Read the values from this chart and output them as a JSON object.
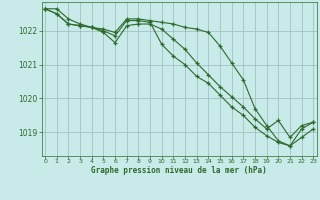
{
  "background_color": "#c8eae8",
  "grid_color": "#9ababa",
  "line_color": "#2d6a2d",
  "marker_color": "#2d6a2d",
  "xlabel": "Graphe pression niveau de la mer (hPa)",
  "xlabel_color": "#2d6a2d",
  "tick_color": "#2d6a2d",
  "ylim": [
    1018.3,
    1022.85
  ],
  "xlim": [
    -0.3,
    23.3
  ],
  "yticks": [
    1019,
    1020,
    1021,
    1022
  ],
  "xticks": [
    0,
    1,
    2,
    3,
    4,
    5,
    6,
    7,
    8,
    9,
    10,
    11,
    12,
    13,
    14,
    15,
    16,
    17,
    18,
    19,
    20,
    21,
    22,
    23
  ],
  "series": [
    [
      1022.65,
      1022.65,
      1022.35,
      1022.2,
      1022.1,
      1021.95,
      1021.65,
      1022.15,
      1022.2,
      1022.2,
      1022.05,
      1021.75,
      1021.45,
      1021.05,
      1020.7,
      1020.35,
      1020.05,
      1019.75,
      1019.4,
      1019.1,
      1019.35,
      1018.85,
      1019.2,
      1019.3
    ],
    [
      1022.65,
      1022.5,
      1022.2,
      1022.15,
      1022.1,
      1022.0,
      1021.85,
      1022.3,
      1022.3,
      1022.25,
      1021.6,
      1021.25,
      1021.0,
      1020.65,
      1020.45,
      1020.1,
      1019.75,
      1019.5,
      1019.15,
      1018.9,
      1018.7,
      1018.6,
      1018.85,
      1019.1
    ],
    [
      1022.65,
      1022.5,
      1022.2,
      1022.15,
      1022.1,
      1022.05,
      1021.95,
      1022.35,
      1022.35,
      1022.3,
      1022.25,
      1022.2,
      1022.1,
      1022.05,
      1021.95,
      1021.55,
      1021.05,
      1020.55,
      1019.7,
      1019.2,
      1018.75,
      1018.6,
      1019.1,
      1019.3
    ]
  ]
}
